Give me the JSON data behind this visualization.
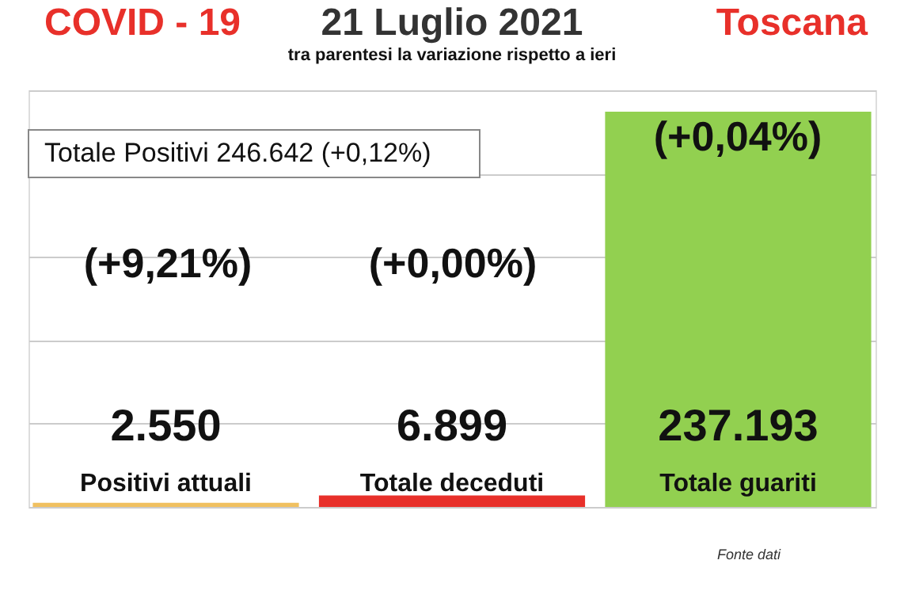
{
  "chart_data": {
    "type": "bar",
    "title": "21 Luglio 2021",
    "subtitle": "tra parentesi la variazione rispetto a ieri",
    "categories": [
      "Positivi attuali",
      "Totale deceduti",
      "Totale guariti"
    ],
    "values": [
      2550,
      6899,
      237193
    ],
    "colors": [
      "#f0c060",
      "#e8302a",
      "#92d050"
    ],
    "value_labels": [
      "2.550",
      "6.899",
      "237.193"
    ],
    "ylim": [
      0,
      250000
    ],
    "yticks": [
      {
        "value": 0,
        "label": null
      },
      {
        "value": 50000,
        "label": null
      },
      {
        "value": 100000,
        "label": null
      },
      {
        "value": 150000,
        "label": null
      },
      {
        "value": 200000,
        "label": null
      },
      {
        "value": 250000,
        "label": null
      }
    ],
    "grid": "y",
    "tick_labels": false,
    "annotations": [
      "COVID - 19",
      "Toscana",
      "Totale Positivi   246.642 (+0,12%)",
      "(+9,21%)",
      "(+0,00%)",
      "(+0,04%)",
      "Fonte dati"
    ]
  }
}
